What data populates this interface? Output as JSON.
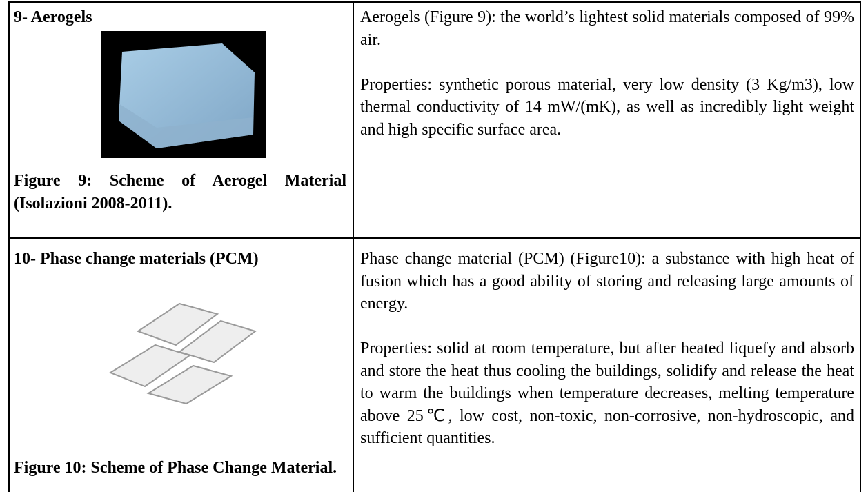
{
  "table": {
    "rows": [
      {
        "heading": "9- Aerogels",
        "caption": "Figure 9: Scheme of Aerogel Material (Isolazioni 2008-2011).",
        "paragraphs": [
          "Aerogels (Figure 9): the world’s lightest solid materials composed of 99% air.",
          "Properties: synthetic porous material, very low density (3 Kg/m3), low thermal conductivity of 14 mW/(mK), as well as incredibly light weight and high specific surface area."
        ]
      },
      {
        "heading": "10- Phase change materials (PCM)",
        "caption": "Figure 10: Scheme of Phase Change Material.",
        "paragraphs": [
          "Phase change material (PCM) (Figure10): a substance with high heat of fusion which has a good ability of storing and releasing large amounts of energy.",
          "Properties: solid at room temperature, but after heated liquefy and absorb and store the heat thus cooling the buildings, solidify and release the heat to warm the buildings when temperature decreases, melting temperature above 25℃, low cost, non-toxic, non-corrosive, non-hydroscopic, and sufficient quantities."
        ]
      }
    ]
  }
}
